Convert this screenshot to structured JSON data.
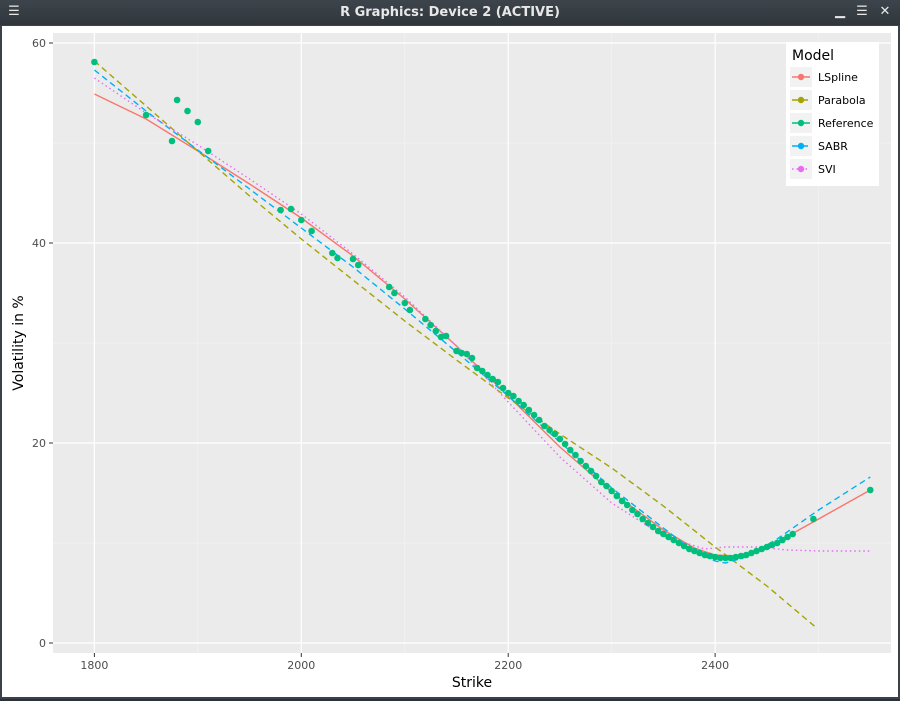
{
  "window": {
    "title": "R Graphics: Device 2 (ACTIVE)",
    "menu_icon": "menu-icon",
    "minimize_icon": "minimize-icon",
    "maximize_icon": "maximize-icon",
    "close_icon": "close-icon"
  },
  "chart_data": {
    "type": "line",
    "title": "",
    "xlabel": "Strike",
    "ylabel": "Volatility in %",
    "xlim": [
      1760,
      2570
    ],
    "ylim": [
      -1,
      61
    ],
    "xticks": [
      1800,
      2000,
      2200,
      2400
    ],
    "yticks": [
      0,
      20,
      40,
      60
    ],
    "grid": true,
    "legend": {
      "title": "Model",
      "placement": "top-right",
      "entries": [
        "LSpline",
        "Parabola",
        "Reference",
        "SABR",
        "SVI"
      ]
    },
    "series": [
      {
        "name": "LSpline",
        "style": "solid",
        "color": "#F8766D",
        "x": [
          1800,
          1850,
          1900,
          1950,
          2000,
          2050,
          2100,
          2150,
          2200,
          2250,
          2300,
          2350,
          2380,
          2400,
          2420,
          2440,
          2460,
          2500,
          2550
        ],
        "y": [
          54.9,
          52.4,
          49.2,
          45.9,
          42.5,
          38.7,
          34.4,
          29.7,
          24.7,
          19.6,
          15.1,
          11.3,
          9.5,
          8.8,
          8.7,
          9.2,
          10.1,
          12.4,
          15.3
        ]
      },
      {
        "name": "Parabola",
        "style": "dashed",
        "color": "#A3A500",
        "x": [
          1800,
          1850,
          1900,
          1950,
          2000,
          2050,
          2100,
          2150,
          2200,
          2250,
          2300,
          2350,
          2400,
          2450,
          2497
        ],
        "y": [
          58.2,
          53.7,
          49.2,
          44.7,
          40.4,
          36.3,
          32.2,
          28.3,
          24.5,
          20.9,
          17.5,
          13.7,
          9.6,
          5.7,
          1.6
        ]
      },
      {
        "name": "SABR",
        "style": "dashed",
        "color": "#00B0F6",
        "x": [
          1800,
          1850,
          1900,
          1950,
          2000,
          2050,
          2100,
          2150,
          2200,
          2250,
          2300,
          2350,
          2380,
          2400,
          2410,
          2430,
          2460,
          2500,
          2550
        ],
        "y": [
          57.3,
          53.2,
          49.3,
          45.4,
          41.5,
          37.6,
          33.4,
          29.1,
          24.7,
          20.1,
          15.5,
          11.5,
          9.1,
          8.2,
          8.0,
          8.6,
          10.4,
          13.3,
          16.6
        ]
      },
      {
        "name": "SVI",
        "style": "dotted",
        "color": "#E76BF3",
        "x": [
          1800,
          1850,
          1900,
          1950,
          2000,
          2050,
          2100,
          2150,
          2200,
          2250,
          2300,
          2350,
          2390,
          2410,
          2440,
          2470,
          2500,
          2550
        ],
        "y": [
          56.5,
          53.0,
          49.8,
          46.4,
          42.9,
          38.9,
          34.6,
          29.7,
          24.1,
          18.6,
          14.0,
          10.7,
          9.4,
          9.6,
          9.6,
          9.3,
          9.2,
          9.2
        ]
      }
    ],
    "reference": {
      "name": "Reference",
      "color": "#00BF7D",
      "x": [
        1800,
        1850,
        1875,
        1880,
        1890,
        1900,
        1910,
        1980,
        1990,
        2000,
        2010,
        2030,
        2035,
        2050,
        2055,
        2085,
        2090,
        2100,
        2105,
        2120,
        2125,
        2130,
        2135,
        2140,
        2150,
        2155,
        2160,
        2165,
        2170,
        2175,
        2180,
        2185,
        2190,
        2195,
        2200,
        2205,
        2210,
        2215,
        2220,
        2225,
        2230,
        2235,
        2240,
        2245,
        2250,
        2255,
        2260,
        2265,
        2270,
        2275,
        2280,
        2285,
        2290,
        2295,
        2300,
        2305,
        2310,
        2315,
        2320,
        2325,
        2330,
        2335,
        2340,
        2345,
        2350,
        2355,
        2360,
        2365,
        2370,
        2375,
        2380,
        2385,
        2390,
        2395,
        2400,
        2405,
        2410,
        2415,
        2420,
        2425,
        2430,
        2435,
        2440,
        2445,
        2450,
        2455,
        2460,
        2465,
        2470,
        2475,
        2495,
        2550
      ],
      "y": [
        58.1,
        52.8,
        50.2,
        54.3,
        53.2,
        52.1,
        49.2,
        43.3,
        43.4,
        42.3,
        41.2,
        39.0,
        38.5,
        38.4,
        37.8,
        35.6,
        35.0,
        34.0,
        33.3,
        32.4,
        31.8,
        31.2,
        30.6,
        30.7,
        29.2,
        29.0,
        28.9,
        28.5,
        27.5,
        27.2,
        26.8,
        26.4,
        26.1,
        25.5,
        25.0,
        24.7,
        24.2,
        23.8,
        23.3,
        22.8,
        22.3,
        21.7,
        21.3,
        20.9,
        20.4,
        19.9,
        19.3,
        18.8,
        18.2,
        17.7,
        17.2,
        16.7,
        16.1,
        15.7,
        15.2,
        14.7,
        14.2,
        13.8,
        13.3,
        12.9,
        12.4,
        12.0,
        11.6,
        11.2,
        10.9,
        10.6,
        10.3,
        10.0,
        9.7,
        9.4,
        9.2,
        9.0,
        8.8,
        8.7,
        8.6,
        8.5,
        8.5,
        8.5,
        8.6,
        8.7,
        8.8,
        9.0,
        9.2,
        9.4,
        9.6,
        9.8,
        10.0,
        10.3,
        10.6,
        10.9,
        12.4,
        15.3
      ]
    }
  }
}
